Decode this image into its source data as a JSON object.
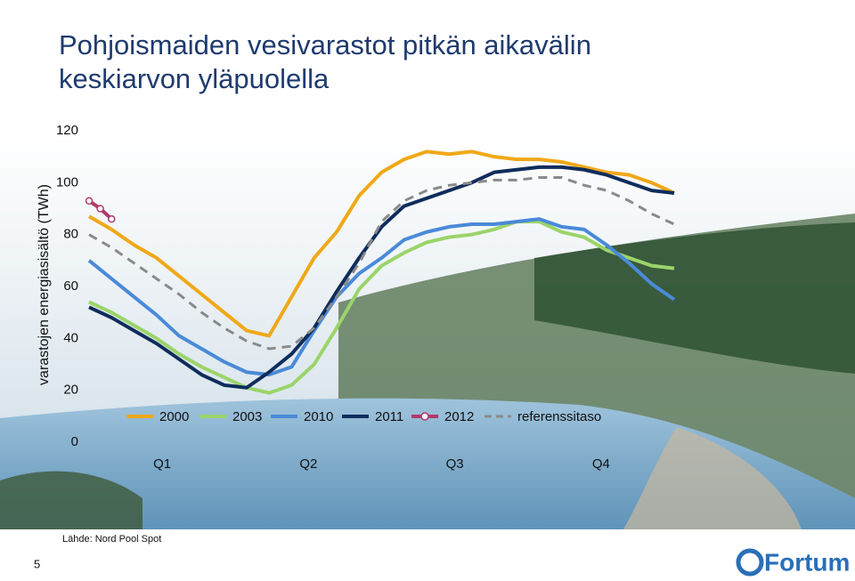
{
  "chart_data": {
    "type": "line",
    "title": "Pohjoismaiden vesivarastot pitkän aikavälin keskiarvon yläpuolella",
    "ylabel": "varastojen energiasisältö (TWh)",
    "categories": [
      "Q1",
      "Q2",
      "Q3",
      "Q4"
    ],
    "x": [
      1,
      3,
      5,
      7,
      9,
      11,
      13,
      15,
      17,
      19,
      21,
      23,
      25,
      27,
      29,
      31,
      33,
      35,
      37,
      39,
      41,
      43,
      45,
      47,
      49,
      51,
      53
    ],
    "xlim": [
      1,
      53
    ],
    "ylim": [
      0,
      120
    ],
    "yticks": [
      0,
      20,
      40,
      60,
      80,
      100,
      120
    ],
    "series": [
      {
        "name": "2000",
        "color": "#f0a818",
        "values": [
          87,
          82,
          76,
          71,
          64,
          57,
          50,
          43,
          41,
          56,
          71,
          81,
          95,
          104,
          109,
          112,
          111,
          112,
          110,
          109,
          109,
          108,
          106,
          104,
          103,
          100,
          96
        ]
      },
      {
        "name": "2003",
        "color": "#9bd46a",
        "values": [
          54,
          50,
          45,
          40,
          34,
          29,
          25,
          21,
          19,
          22,
          30,
          44,
          59,
          68,
          73,
          77,
          79,
          80,
          82,
          85,
          85,
          81,
          79,
          74,
          71,
          68,
          67
        ]
      },
      {
        "name": "2010",
        "color": "#4a8ad8",
        "values": [
          70,
          63,
          56,
          49,
          41,
          36,
          31,
          27,
          26,
          29,
          43,
          56,
          65,
          71,
          78,
          81,
          83,
          84,
          84,
          85,
          86,
          83,
          82,
          76,
          69,
          61,
          55
        ]
      },
      {
        "name": "2011",
        "color": "#0f2d5c",
        "values": [
          52,
          48,
          43,
          38,
          32,
          26,
          22,
          21,
          27,
          34,
          44,
          58,
          71,
          83,
          91,
          94,
          97,
          100,
          104,
          105,
          106,
          106,
          105,
          103,
          100,
          97,
          96
        ]
      },
      {
        "name": "2012",
        "color": "#b03a6a",
        "marker": "circle",
        "x": [
          1,
          2,
          3
        ],
        "values": [
          93,
          90,
          86
        ]
      },
      {
        "name": "referenssitaso",
        "color": "#8a8a8a",
        "dash": true,
        "values": [
          80,
          75,
          69,
          63,
          57,
          50,
          44,
          39,
          36,
          37,
          44,
          56,
          69,
          85,
          93,
          97,
          99,
          100,
          101,
          101,
          102,
          102,
          99,
          97,
          93,
          88,
          84
        ]
      }
    ]
  },
  "source": "Lähde: Nord Pool Spot",
  "page_number": "5",
  "logo": "Fortum"
}
